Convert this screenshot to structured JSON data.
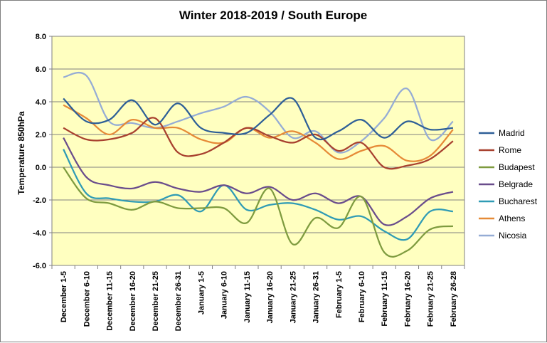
{
  "chart_data": {
    "type": "line",
    "title": "Winter 2018-2019 / South Europe",
    "xlabel": "",
    "ylabel": "Temperature 850hPa",
    "ylim": [
      -6.0,
      8.0
    ],
    "y_ticks": [
      "8.0",
      "6.0",
      "4.0",
      "2.0",
      "0.0",
      "-2.0",
      "-4.0",
      "-6.0"
    ],
    "grid": true,
    "legend_position": "right",
    "plot_background": "#ffffc0",
    "categories": [
      "December 1-5",
      "December 6-10",
      "December 11-15",
      "December 16-20",
      "December 21-25",
      "December 26-31",
      "January 1-5",
      "January 6-10",
      "January 11-15",
      "January 16-20",
      "January 21-25",
      "January 26-31",
      "February 1-5",
      "February 6-10",
      "February 11-15",
      "February 16-20",
      "February 21-25",
      "February 26-28"
    ],
    "series": [
      {
        "name": "Madrid",
        "color": "#2e5f97",
        "values": [
          4.2,
          2.8,
          2.9,
          4.1,
          2.6,
          3.9,
          2.4,
          2.1,
          2.1,
          3.2,
          4.2,
          1.8,
          2.2,
          2.9,
          1.8,
          2.8,
          2.3,
          2.4
        ]
      },
      {
        "name": "Rome",
        "color": "#a8412f",
        "values": [
          2.4,
          1.7,
          1.7,
          2.1,
          3.0,
          0.9,
          0.8,
          1.5,
          2.4,
          1.9,
          1.5,
          2.0,
          1.0,
          1.5,
          0.0,
          0.1,
          0.5,
          1.6
        ]
      },
      {
        "name": "Budapest",
        "color": "#7e9b3f",
        "values": [
          0.0,
          -1.9,
          -2.2,
          -2.6,
          -2.1,
          -2.5,
          -2.5,
          -2.5,
          -3.4,
          -1.3,
          -4.7,
          -3.1,
          -3.7,
          -1.8,
          -5.2,
          -5.1,
          -3.8,
          -3.6
        ]
      },
      {
        "name": "Belgrade",
        "color": "#6a4d8c",
        "values": [
          1.8,
          -0.6,
          -1.1,
          -1.3,
          -0.9,
          -1.3,
          -1.5,
          -1.1,
          -1.6,
          -1.2,
          -2.0,
          -1.6,
          -2.2,
          -1.8,
          -3.5,
          -3.0,
          -1.9,
          -1.5
        ]
      },
      {
        "name": "Bucharest",
        "color": "#2f9bb5",
        "values": [
          1.1,
          -1.6,
          -1.9,
          -2.1,
          -2.1,
          -1.7,
          -2.7,
          -1.1,
          -2.6,
          -2.3,
          -2.2,
          -2.6,
          -3.2,
          -3.0,
          -3.9,
          -4.4,
          -2.7,
          -2.7
        ]
      },
      {
        "name": "Athens",
        "color": "#e68a37",
        "values": [
          3.8,
          3.0,
          2.0,
          2.9,
          2.4,
          2.4,
          1.7,
          1.5,
          2.4,
          1.8,
          2.2,
          1.5,
          0.5,
          1.0,
          1.3,
          0.4,
          0.7,
          2.3
        ]
      },
      {
        "name": "Nicosia",
        "color": "#95acd5",
        "values": [
          5.5,
          5.6,
          2.8,
          2.7,
          2.4,
          2.8,
          3.3,
          3.7,
          4.3,
          3.4,
          1.8,
          2.2,
          0.9,
          1.6,
          3.0,
          4.8,
          1.7,
          2.8
        ]
      }
    ]
  }
}
